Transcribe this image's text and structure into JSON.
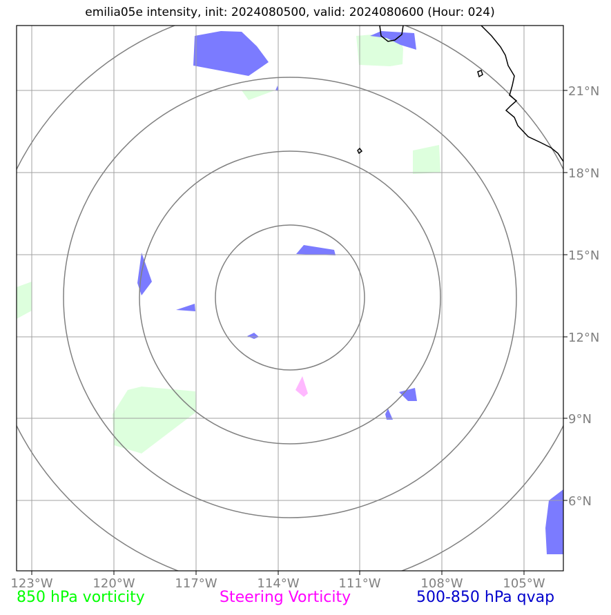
{
  "title": "emilia05e intensity, init: 2024080500, valid: 2024080600 (Hour: 024)",
  "lon_labels": [
    "123°W",
    "120°W",
    "117°W",
    "114°W",
    "111°W",
    "108°W",
    "105°W"
  ],
  "lat_labels": [
    "21°N",
    "18°N",
    "15°N",
    "12°N",
    "9°N",
    "6°N"
  ],
  "legend": [
    {
      "label": "850 hPa vorticity",
      "color": "#00ff00"
    },
    {
      "label": "Steering Vorticity",
      "color": "#ff00ff"
    },
    {
      "label": "500-850 hPa qvap",
      "color": "#0000cc"
    }
  ],
  "colors": {
    "vorticity_fill": "#ddffdd",
    "steering_fill": "#ffb8ff",
    "qvap_fill": "#7b7bff",
    "range_rings": "#808080",
    "gridlines": "#a0a0a0",
    "coastline": "#000000"
  }
}
